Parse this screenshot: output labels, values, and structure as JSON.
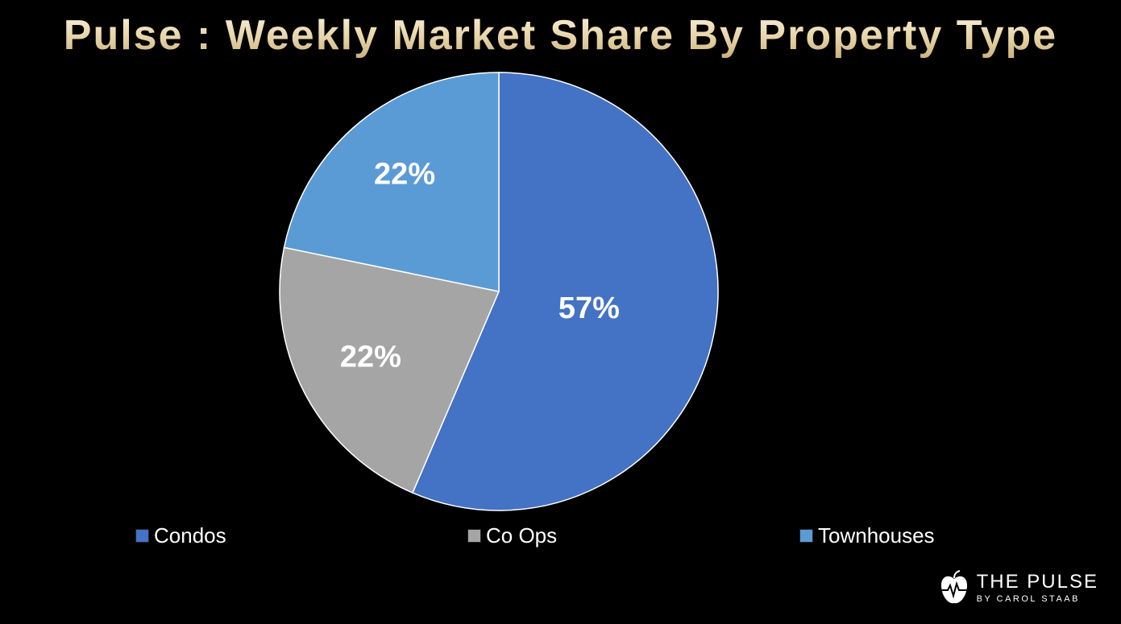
{
  "title": "Pulse : Weekly Market Share By Property Type",
  "chart_data": {
    "type": "pie",
    "title": "Pulse : Weekly Market Share By Property Type",
    "legend_position": "bottom",
    "slices": [
      {
        "name": "Condos",
        "value": 57,
        "label": "57%",
        "color": "#4472c4"
      },
      {
        "name": "Co Ops",
        "value": 22,
        "label": "22%",
        "color": "#a5a5a5"
      },
      {
        "name": "Townhouses",
        "value": 22,
        "label": "22%",
        "color": "#5b9bd5"
      }
    ]
  },
  "logo": {
    "main": "THE PULSE",
    "sub": "BY CAROL STAAB",
    "icon": "apple-heartbeat-icon"
  }
}
